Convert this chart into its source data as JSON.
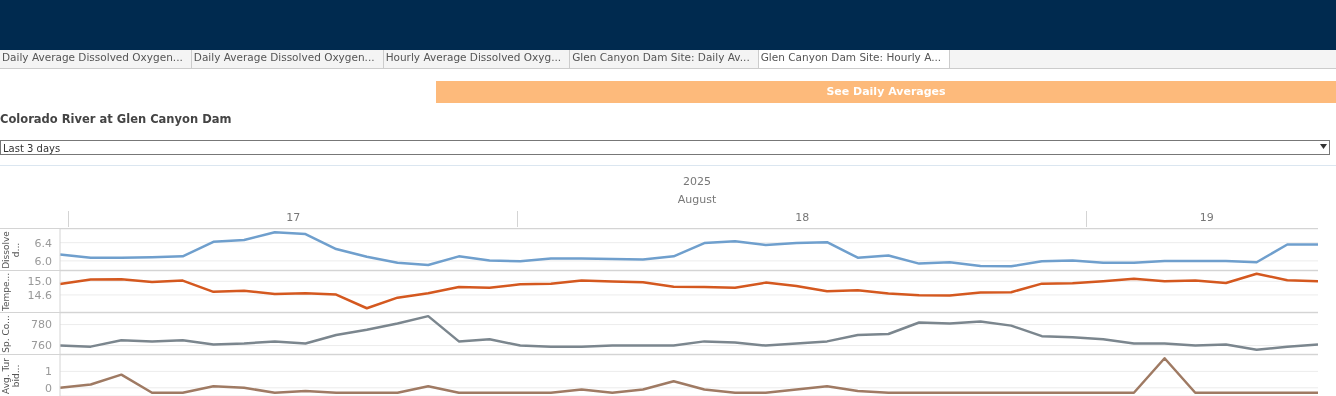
{
  "chart_data": [
    {
      "type": "line",
      "title": "Colorado River  at Glen Canyon Dam",
      "annotations": [
        "Daily Average Dissolved Oxygen...",
        "Daily Average Dissolved Oxygen...",
        "Hourly Average Dissolved Oxyg...",
        "Glen Canyon Dam Site: Daily Av...",
        "Glen Canyon Dam Site: Hourly A...",
        "See Daily Averages",
        "Last 3 days",
        "2025",
        "August",
        "17",
        "18",
        "19"
      ],
      "ylabel": "Dissolved...",
      "categories": [
        null,
        null,
        null,
        null,
        null,
        null,
        null,
        null,
        null,
        null,
        null,
        null,
        null,
        null,
        null,
        null,
        null,
        null,
        null,
        null,
        null,
        null,
        null,
        null,
        null,
        null,
        null,
        null,
        null,
        null,
        null,
        null,
        null,
        null,
        null,
        null,
        null,
        null,
        null,
        null,
        null,
        null
      ],
      "ylim": [
        5.8,
        6.7
      ],
      "yticks": [
        {
          "value": 6.0,
          "label": "6.0"
        },
        {
          "value": 6.4,
          "label": "6.4"
        }
      ],
      "grid": "y",
      "series": [
        {
          "color": "#6f9fcd",
          "values": [
            6.14,
            6.07,
            6.07,
            6.08,
            6.1,
            6.42,
            6.46,
            6.63,
            6.59,
            6.26,
            6.09,
            5.96,
            5.91,
            6.1,
            6.01,
            5.99,
            6.05,
            6.05,
            6.04,
            6.03,
            6.1,
            6.39,
            6.43,
            6.35,
            6.39,
            6.41,
            6.07,
            6.12,
            5.94,
            5.97,
            5.89,
            5.88,
            5.99,
            6.01,
            5.96,
            5.96,
            6.0,
            6.0,
            6.0,
            5.97,
            6.36,
            6.36
          ]
        }
      ]
    },
    {
      "type": "line",
      "ylabel": "Tempe...",
      "categories": [
        null,
        null,
        null,
        null,
        null,
        null,
        null,
        null,
        null,
        null,
        null,
        null,
        null,
        null,
        null,
        null,
        null,
        null,
        null,
        null,
        null,
        null,
        null,
        null,
        null,
        null,
        null,
        null,
        null,
        null,
        null,
        null,
        null,
        null,
        null,
        null,
        null,
        null,
        null,
        null,
        null,
        null
      ],
      "ylim": [
        14.1,
        15.3
      ],
      "yticks": [
        {
          "value": 14.6,
          "label": "14.6"
        },
        {
          "value": 15.0,
          "label": "15.0"
        }
      ],
      "grid": "y",
      "series": [
        {
          "color": "#d4581f",
          "values": [
            14.92,
            15.05,
            15.06,
            14.98,
            15.02,
            14.69,
            14.72,
            14.63,
            14.65,
            14.61,
            14.21,
            14.52,
            14.65,
            14.83,
            14.81,
            14.91,
            14.93,
            15.02,
            14.99,
            14.97,
            14.84,
            14.83,
            14.81,
            14.96,
            14.86,
            14.71,
            14.74,
            14.64,
            14.59,
            14.58,
            14.67,
            14.68,
            14.93,
            14.94,
            15.0,
            15.07,
            15.0,
            15.02,
            14.95,
            15.22,
            15.03,
            15.0
          ]
        }
      ]
    },
    {
      "type": "line",
      "ylabel": "Sp. Co...",
      "categories": [
        null,
        null,
        null,
        null,
        null,
        null,
        null,
        null,
        null,
        null,
        null,
        null,
        null,
        null,
        null,
        null,
        null,
        null,
        null,
        null,
        null,
        null,
        null,
        null,
        null,
        null,
        null,
        null,
        null,
        null,
        null,
        null,
        null,
        null,
        null,
        null,
        null,
        null,
        null,
        null,
        null,
        null
      ],
      "ylim": [
        752,
        791
      ],
      "yticks": [
        760,
        780
      ],
      "grid": "y",
      "series": [
        {
          "color": "#7b868e",
          "values": [
            760,
            759,
            765,
            764,
            765,
            761,
            762,
            764,
            762,
            770,
            775,
            781,
            788,
            764,
            766,
            760,
            759,
            759,
            760,
            760,
            760,
            764,
            763,
            760,
            762,
            764,
            770,
            771,
            782,
            781,
            783,
            779,
            769,
            768,
            766,
            762,
            762,
            760,
            761,
            756,
            759,
            761
          ]
        }
      ]
    },
    {
      "type": "line",
      "ylabel": "Avg. Turbid...",
      "categories": [
        null,
        null,
        null,
        null,
        null,
        null,
        null,
        null,
        null,
        null,
        null,
        null,
        null,
        null,
        null,
        null,
        null,
        null,
        null,
        null,
        null,
        null,
        null,
        null,
        null,
        null,
        null,
        null,
        null,
        null,
        null,
        null,
        null,
        null,
        null,
        null,
        null,
        null,
        null,
        null,
        null,
        null
      ],
      "ylim": [
        -0.5,
        2
      ],
      "yticks": [
        0,
        1
      ],
      "grid": "y",
      "series": [
        {
          "color": "#9f7a63",
          "values": [
            0,
            0.2,
            0.8,
            -0.3,
            -0.3,
            0.1,
            0,
            -0.3,
            -0.2,
            -0.3,
            -0.3,
            -0.3,
            0.1,
            -0.3,
            -0.3,
            -0.3,
            -0.3,
            -0.1,
            -0.3,
            -0.1,
            0.4,
            -0.1,
            -0.3,
            -0.3,
            -0.1,
            0.1,
            -0.2,
            -0.3,
            -0.3,
            -0.3,
            -0.3,
            -0.3,
            -0.3,
            -0.3,
            -0.3,
            -0.3,
            1.8,
            -0.3,
            -0.3,
            -0.3,
            -0.3,
            -0.3
          ]
        }
      ]
    }
  ]
}
